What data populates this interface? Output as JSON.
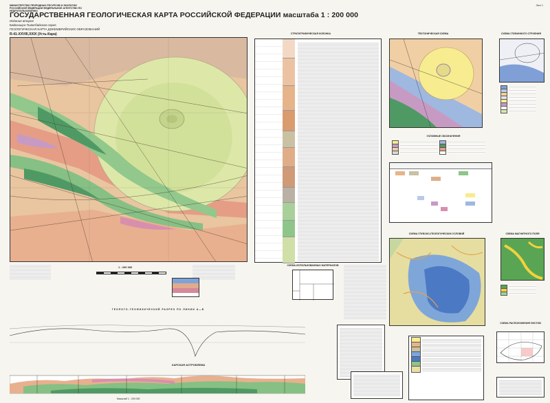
{
  "header": {
    "org": "МИНИСТЕРСТВО ПРИРОДНЫХ РЕСУРСОВ И ЭКОЛОГИИ РОССИЙСКОЙ ФЕДЕРАЦИИ ФЕДЕРАЛЬНОЕ АГЕНТСТВО ПО НЕДРОПОЛЬЗОВАНИЮ",
    "title": "ГОСУДАРСТВЕННАЯ ГЕОЛОГИЧЕСКАЯ КАРТА РОССИЙСКОЙ ФЕДЕРАЦИИ масштаба 1 : 200 000",
    "edition": "Издание второе",
    "series": "Байконыро-Тыватбайская серия",
    "subtitle": "ГЕОЛОГИЧЕСКАЯ КАРТА ДОКЕМБРИЙСКИХ ОБРАЗОВАНИЙ",
    "sheet": "R-41-XXVIII,XXIX (Усть-Кара)",
    "sheet_number": "Лист 1"
  },
  "panels": {
    "strat_column": "СТРАТИГРАФИЧЕСКАЯ КОЛОНКА",
    "tectonic_scheme": "ТЕКТОНИЧЕСКАЯ СХЕМА",
    "deep_scheme": "СХЕМА ГЛУБИННОГО СТРОЕНИЯ",
    "legend": "УСЛОВНЫЕ ОБОЗНАЧЕНИЯ",
    "geomorph_scheme": "СХЕМА ГЛУБОКО-ГЕОЛОГИЧЕСКИХ УСЛОВИЙ",
    "grav_scheme": "СХЕМА МАГНИТНОГО ПОЛЯ",
    "index_scheme": "СХЕМА РАСПОЛОЖЕНИЯ ЛИСТОВ",
    "cross_section": "ГЕОЛОГО-ГЕОФИЗИЧЕСКИЙ РАЗРЕЗ ПО ЛИНИИ А—Б",
    "crater": "КАРСКАЯ АСТРОБЛЕМА",
    "sources": "СХЕМА ИСПОЛЬЗОВАННЫХ МАТЕРИАЛОВ",
    "scale": "1 : 200 000",
    "map_scale_text": "Масштаб 1 : 200 000"
  },
  "colors": {
    "crater": "#dce8a6",
    "crater_inner": "#c9dc8d",
    "belt_green": "#8ec58a",
    "belt_dark": "#4f9a64",
    "orange": "#e6b48a",
    "salmon": "#e9a58d",
    "pink": "#d88fae",
    "gray": "#b6b0a8",
    "blue": "#7fa6d9"
  }
}
